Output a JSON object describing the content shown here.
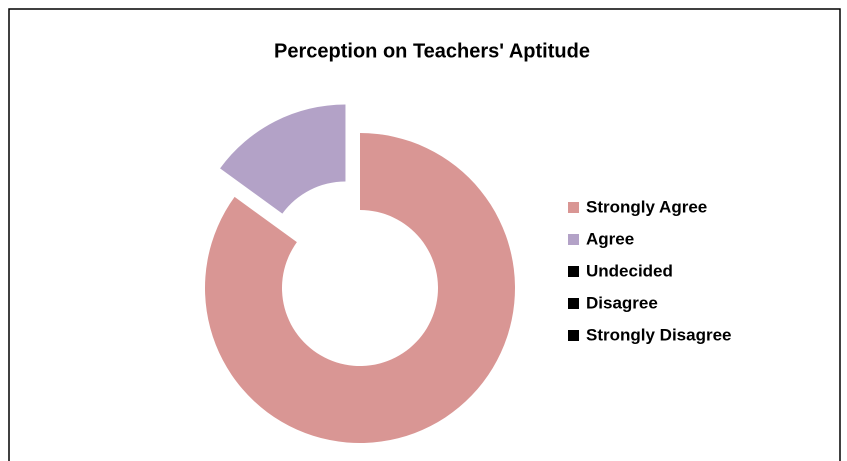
{
  "chart_data": {
    "type": "donut",
    "title": "Perception on Teachers' Aptitude",
    "categories": [
      "Strongly Agree",
      "Agree",
      "Undecided",
      "Disagree",
      "Strongly Disagree"
    ],
    "values": [
      85,
      15,
      0,
      0,
      0
    ],
    "colors": [
      "#d99694",
      "#b3a2c7",
      "#000000",
      "#000000",
      "#000000"
    ],
    "legend": "right"
  }
}
